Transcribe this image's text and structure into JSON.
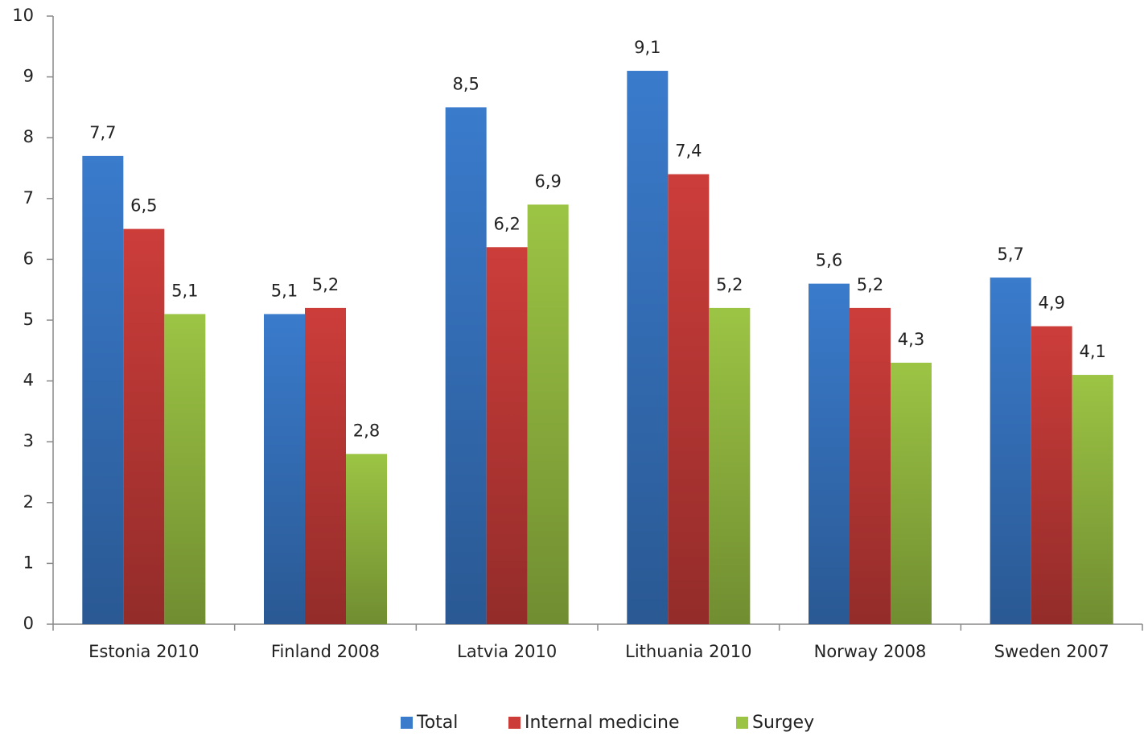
{
  "chart_data": {
    "type": "bar",
    "categories": [
      "Estonia 2010",
      "Finland 2008",
      "Latvia 2010",
      "Lithuania 2010",
      "Norway 2008",
      "Sweden 2007"
    ],
    "series": [
      {
        "name": "Total",
        "color": "#3a7bcc",
        "values": [
          7.7,
          5.1,
          8.5,
          9.1,
          5.6,
          5.7
        ],
        "value_labels": [
          "7,7",
          "5,1",
          "8,5",
          "9,1",
          "5,6",
          "5,7"
        ]
      },
      {
        "name": "Internal medicine",
        "color": "#cc3d3a",
        "values": [
          6.5,
          5.2,
          6.2,
          7.4,
          5.2,
          4.9
        ],
        "value_labels": [
          "6,5",
          "5,2",
          "6,2",
          "7,4",
          "5,2",
          "4,9"
        ]
      },
      {
        "name": "Surgey",
        "color": "#9cc444",
        "values": [
          5.1,
          2.8,
          6.9,
          5.2,
          4.3,
          4.1
        ],
        "value_labels": [
          "5,1",
          "2,8",
          "6,9",
          "5,2",
          "4,3",
          "4,1"
        ]
      }
    ],
    "ylim": [
      0,
      10
    ],
    "yticks": [
      0,
      1,
      2,
      3,
      4,
      5,
      6,
      7,
      8,
      9,
      10
    ],
    "grid": false,
    "legend": "bottom"
  }
}
